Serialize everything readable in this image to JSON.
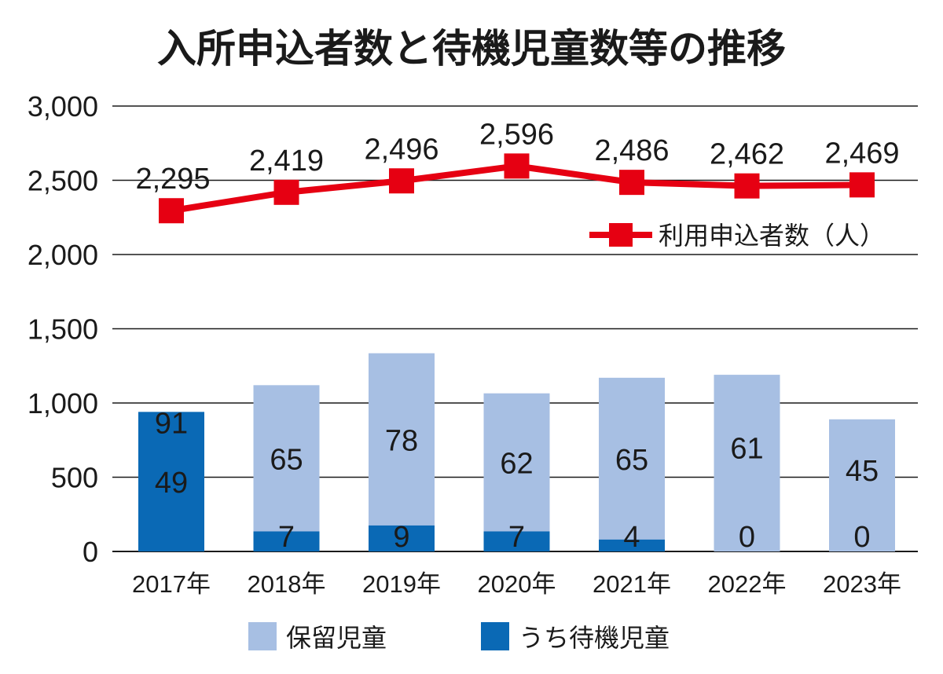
{
  "chart_data": {
    "type": "bar",
    "title": "入所申込者数と待機児童数等の推移",
    "categories": [
      "2017年",
      "2018年",
      "2019年",
      "2020年",
      "2021年",
      "2022年",
      "2023年"
    ],
    "ylim": [
      0,
      3000
    ],
    "yticks": [
      0,
      500,
      1000,
      1500,
      2000,
      2500,
      3000
    ],
    "ytick_labels": [
      "0",
      "500",
      "1,000",
      "1,500",
      "2,000",
      "2,500",
      "3,000"
    ],
    "grid": true,
    "series": [
      {
        "name": "うち待機児童",
        "kind": "bar-stacked",
        "values": [
          49,
          7,
          9,
          7,
          4,
          0,
          0
        ],
        "plotted_height": [
          940,
          135,
          175,
          135,
          80,
          0,
          0
        ],
        "labels": [
          "49",
          "7",
          "9",
          "7",
          "4",
          "0",
          "0"
        ],
        "color": "#0a69b5"
      },
      {
        "name": "保留児童",
        "kind": "bar-stacked",
        "values": [
          91,
          65,
          78,
          62,
          65,
          61,
          45
        ],
        "plotted_height": [
          800,
          1120,
          1335,
          1065,
          1170,
          1190,
          890
        ],
        "labels": [
          "91",
          "65",
          "78",
          "62",
          "65",
          "61",
          "45"
        ],
        "color": "#a7bfe3"
      },
      {
        "name": "利用申込者数（人）",
        "kind": "line",
        "values": [
          2295,
          2419,
          2496,
          2596,
          2486,
          2462,
          2469
        ],
        "labels": [
          "2,295",
          "2,419",
          "2,496",
          "2,596",
          "2,486",
          "2,462",
          "2,469"
        ],
        "color": "#e60012"
      }
    ],
    "legend": {
      "line_label": "利用申込者数（人）",
      "bar_labels": [
        "保留児童",
        "うち待機児童"
      ]
    }
  }
}
